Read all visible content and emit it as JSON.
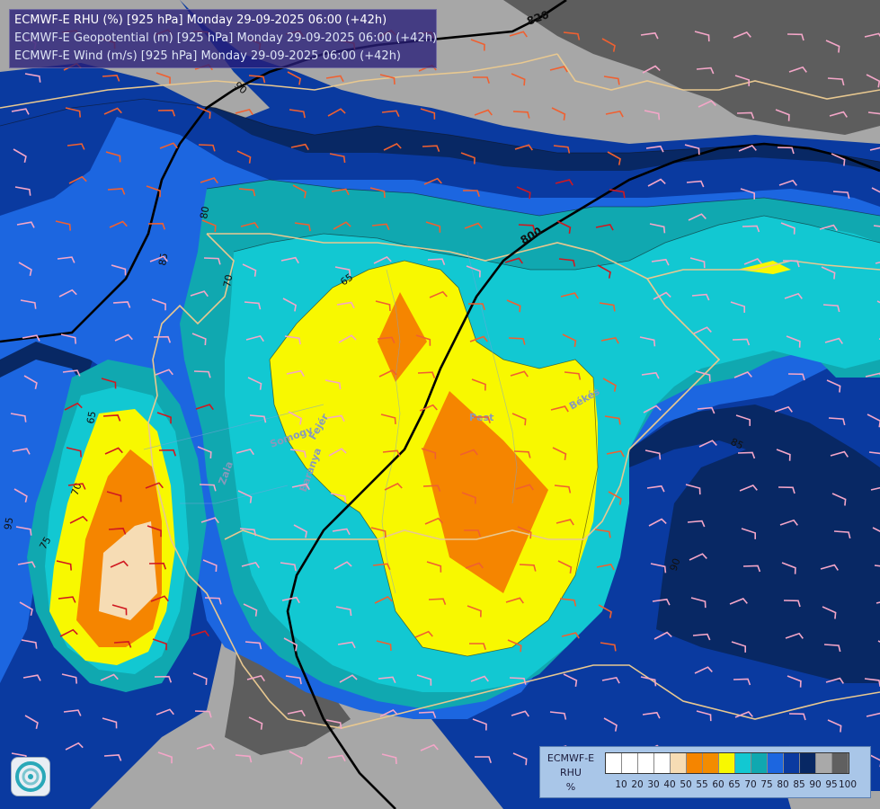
{
  "header": {
    "line1": "ECMWF-E RHU (%) [925 hPa] Monday 29-09-2025 06:00 (+42h)",
    "line2": "ECMWF-E Geopotential (m) [925 hPa] Monday 29-09-2025 06:00 (+42h)",
    "line3": "ECMWF-E Wind (m/s) [925 hPa] Monday 29-09-2025 06:00 (+42h)"
  },
  "legend": {
    "title1": "ECMWF-E",
    "title2": "RHU",
    "unit": "%",
    "ticks": [
      "10",
      "20",
      "30",
      "40",
      "50",
      "55",
      "60",
      "65",
      "70",
      "75",
      "80",
      "85",
      "90",
      "95",
      "100"
    ],
    "colors": [
      "#ffffff",
      "#ffffff",
      "#ffffff",
      "#ffffff",
      "#f6dcb4",
      "#f58500",
      "#f28c00",
      "#f8f800",
      "#12c8d2",
      "#10a8b0",
      "#1c66e0",
      "#0a3aa0",
      "#082864",
      "#a9a9a9",
      "#606060"
    ]
  },
  "geopotential_labels": {
    "g820": "820",
    "g800": "800"
  },
  "rhu_labels": {
    "l65a": "65",
    "l65b": "65",
    "l70a": "70",
    "l70b": "70",
    "l75": "75",
    "l85a": "85",
    "l85b": "85",
    "l90a": "90",
    "l90b": "90",
    "l80": "80",
    "l95": "95"
  },
  "places": {
    "pest": "Pest",
    "bekes": "Békés",
    "fejer": "Fejér",
    "somogy": "Somogy",
    "baranya": "Baranya",
    "zala": "Zala"
  },
  "icons": {
    "logo": "ecmwf-swirl-logo-icon"
  }
}
